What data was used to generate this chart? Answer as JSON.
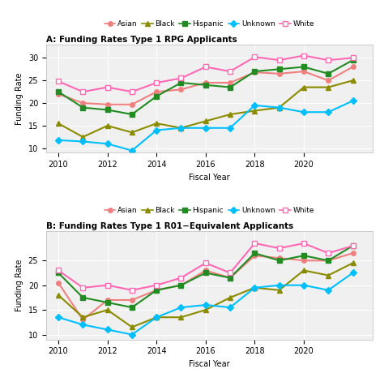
{
  "years": [
    2010,
    2011,
    2012,
    2013,
    2014,
    2015,
    2016,
    2017,
    2018,
    2019,
    2020,
    2021,
    2022
  ],
  "panel_A": {
    "title": "A: Funding Rates Type 1 RPG Applicants",
    "ylabel": "Funding Rate",
    "xlabel": "Fiscal Year",
    "ylim": [
      9,
      33
    ],
    "yticks": [
      10,
      15,
      20,
      25,
      30
    ],
    "series": {
      "Asian": [
        22.0,
        20.0,
        19.7,
        19.7,
        22.5,
        23.0,
        24.5,
        24.5,
        26.8,
        26.5,
        27.0,
        25.0,
        28.0
      ],
      "Black": [
        15.5,
        12.5,
        15.0,
        13.5,
        15.5,
        14.5,
        16.0,
        17.5,
        18.3,
        19.0,
        23.5,
        23.5,
        25.0
      ],
      "Hispanic": [
        22.5,
        19.0,
        18.5,
        17.5,
        21.5,
        24.5,
        24.0,
        23.5,
        27.0,
        27.5,
        28.0,
        26.5,
        29.5
      ],
      "Unknown": [
        11.8,
        11.5,
        11.0,
        9.5,
        14.0,
        14.5,
        14.5,
        14.5,
        19.5,
        19.0,
        18.0,
        18.0,
        20.5
      ],
      "White": [
        24.8,
        22.5,
        23.5,
        22.5,
        24.5,
        25.5,
        28.0,
        27.0,
        30.2,
        29.5,
        30.5,
        29.5,
        30.0
      ]
    }
  },
  "panel_B": {
    "title": "B: Funding Rates Type 1 R01−Equivalent Applicants",
    "ylabel": "Funding Rate",
    "xlabel": "Fiscal Year",
    "ylim": [
      9,
      31
    ],
    "yticks": [
      10,
      15,
      20,
      25
    ],
    "series": {
      "Asian": [
        20.5,
        13.0,
        17.0,
        17.0,
        19.0,
        20.0,
        23.0,
        21.5,
        26.0,
        25.5,
        25.0,
        25.0,
        26.5
      ],
      "Black": [
        18.0,
        13.5,
        15.0,
        11.5,
        13.5,
        13.5,
        15.0,
        17.5,
        19.5,
        19.0,
        23.0,
        22.0,
        24.5
      ],
      "Hispanic": [
        22.5,
        17.5,
        16.5,
        15.5,
        19.0,
        20.0,
        22.5,
        21.5,
        26.5,
        25.0,
        26.0,
        25.0,
        28.0
      ],
      "Unknown": [
        13.5,
        12.0,
        11.0,
        10.0,
        13.5,
        15.5,
        16.0,
        15.5,
        19.5,
        20.0,
        20.0,
        19.0,
        22.5
      ],
      "White": [
        23.0,
        19.5,
        20.0,
        19.0,
        20.0,
        21.5,
        24.5,
        22.5,
        28.5,
        27.5,
        28.5,
        26.5,
        28.0
      ]
    }
  },
  "colors": {
    "Asian": "#F08080",
    "Black": "#8B8B00",
    "Hispanic": "#228B22",
    "Unknown": "#00BFFF",
    "White": "#FF69B4"
  },
  "background_color": "#f0f0f0",
  "grid_color": "#ffffff",
  "linewidth": 1.5,
  "markersize": 4,
  "legend_order": [
    "Asian",
    "Black",
    "Hispanic",
    "Unknown",
    "White"
  ],
  "xticks": [
    2010,
    2012,
    2014,
    2016,
    2018,
    2020
  ],
  "xlim": [
    2009.5,
    2022.8
  ]
}
